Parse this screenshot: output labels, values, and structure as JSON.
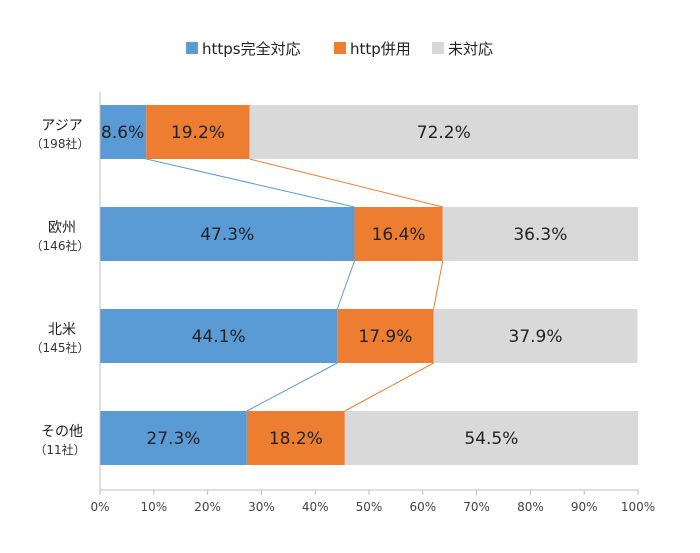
{
  "chart_data": {
    "type": "bar",
    "orientation": "horizontal",
    "stacked": "percent",
    "categories": [
      {
        "name": "アジア",
        "sub": "（198社）"
      },
      {
        "name": "欧州",
        "sub": "（146社）"
      },
      {
        "name": "北米",
        "sub": "（145社）"
      },
      {
        "name": "その他",
        "sub": "（11社）"
      }
    ],
    "series": [
      {
        "name": "https完全対応",
        "color": "#5b9bd5",
        "values": [
          8.6,
          47.3,
          44.1,
          27.3
        ],
        "labels": [
          "8.6%",
          "47.3%",
          "44.1%",
          "27.3%"
        ]
      },
      {
        "name": "http併用",
        "color": "#ed7d31",
        "values": [
          19.2,
          16.4,
          17.9,
          18.2
        ],
        "labels": [
          "19.2%",
          "16.4%",
          "17.9%",
          "18.2%"
        ]
      },
      {
        "name": "未対応",
        "color": "#d9d9d9",
        "values": [
          72.2,
          36.3,
          37.9,
          54.5
        ],
        "labels": [
          "72.2%",
          "36.3%",
          "37.9%",
          "54.5%"
        ]
      }
    ],
    "xlim": [
      0,
      100
    ],
    "x_ticks": [
      "0%",
      "10%",
      "20%",
      "30%",
      "40%",
      "50%",
      "60%",
      "70%",
      "80%",
      "90%",
      "100%"
    ],
    "series_lines": true,
    "legend": "top-center",
    "grid": false
  }
}
